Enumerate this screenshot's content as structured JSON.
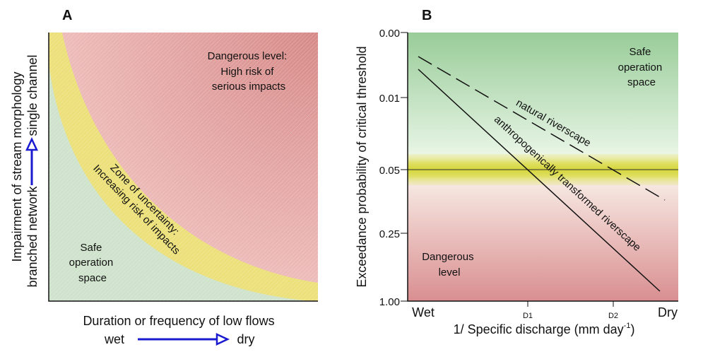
{
  "panel_a": {
    "label": "A",
    "regions": {
      "dangerous": [
        "Dangerous level:",
        "High risk of",
        "serious impacts"
      ],
      "uncertainty": [
        "Zone of uncertainty:",
        "Increasing risk of impacts"
      ],
      "safe": [
        "Safe",
        "operation",
        "space"
      ]
    },
    "y_axis": {
      "title": "Impairment of stream morphology",
      "low": "branched network",
      "high": "single channel"
    },
    "x_axis": {
      "title": "Duration or frequency of low flows",
      "low": "wet",
      "high": "dry"
    },
    "colors": {
      "safe": "#cfe3cc",
      "uncertainty": "#ece07a",
      "dangerous": "#dc9c9a",
      "arrow": "#1a1ad0"
    }
  },
  "panel_b": {
    "label": "B",
    "y_axis": {
      "title": "Exceedance probability of critical threshold",
      "ticks": [
        "0.00",
        "0.01",
        "0.05",
        "0.25",
        "1.00"
      ]
    },
    "x_axis": {
      "title": "1/ Specific discharge (mm day",
      "title_superscript": "-1",
      "title_end": ")",
      "ticks": [
        "Wet",
        "D1",
        "D2",
        "Dry"
      ]
    },
    "regions": {
      "safe": [
        "Safe",
        "operation",
        "space"
      ],
      "dangerous": [
        "Dangerous",
        "level"
      ]
    },
    "series": [
      {
        "name": "natural riverscape",
        "style": "dashed",
        "trend": "increasing exceedance from Wet to Dry; crosses 0.05 at D2"
      },
      {
        "name": "anthropogenically transformed riverscape",
        "style": "solid",
        "trend": "increasing exceedance from Wet to Dry; crosses 0.05 at D1"
      }
    ],
    "threshold": "0.05",
    "colors": {
      "safe": "#9fd0a0",
      "threshold_band": "#d8d84a",
      "dangerous": "#d99294"
    }
  }
}
